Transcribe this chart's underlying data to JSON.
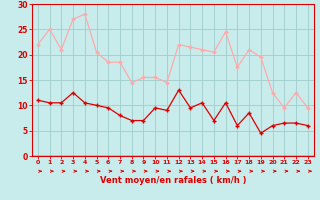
{
  "x": [
    0,
    1,
    2,
    3,
    4,
    5,
    6,
    7,
    8,
    9,
    10,
    11,
    12,
    13,
    14,
    15,
    16,
    17,
    18,
    19,
    20,
    21,
    22,
    23
  ],
  "wind_avg": [
    11,
    10.5,
    10.5,
    12.5,
    10.5,
    10,
    9.5,
    8,
    7,
    7,
    9.5,
    9,
    13,
    9.5,
    10.5,
    7,
    10.5,
    6,
    8.5,
    4.5,
    6,
    6.5,
    6.5,
    6
  ],
  "wind_gust": [
    22,
    25,
    21,
    27,
    28,
    20.5,
    18.5,
    18.5,
    14.5,
    15.5,
    15.5,
    14.5,
    22,
    21.5,
    21,
    20.5,
    24.5,
    17.5,
    21,
    19.5,
    12.5,
    9.5,
    12.5,
    9.5
  ],
  "wind_avg_color": "#dd0000",
  "wind_gust_color": "#ffaaaa",
  "bg_color": "#c8ecec",
  "grid_color": "#a0cccc",
  "xlabel": "Vent moyen/en rafales ( km/h )",
  "ylim": [
    0,
    30
  ],
  "yticks": [
    0,
    5,
    10,
    15,
    20,
    25,
    30
  ],
  "xticks": [
    0,
    1,
    2,
    3,
    4,
    5,
    6,
    7,
    8,
    9,
    10,
    11,
    12,
    13,
    14,
    15,
    16,
    17,
    18,
    19,
    20,
    21,
    22,
    23
  ]
}
